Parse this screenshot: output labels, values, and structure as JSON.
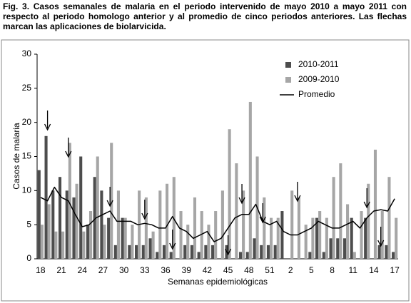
{
  "chart_data": {
    "type": "bar",
    "title": "Fig. 3. Casos semanales de malaria en el periodo intervenido de mayo 2010 a mayo 2011 con respecto al periodo homologo anterior y al promedio de cinco periodos anteriores. Las flechas marcan las aplicaciones de biolarvicida.",
    "x_label": "Semanas epidemiológicas",
    "y_label": "Casos de malaria",
    "categories": [
      "18",
      null,
      null,
      "21",
      null,
      null,
      "24",
      null,
      null,
      "27",
      null,
      null,
      "30",
      null,
      null,
      "33",
      null,
      null,
      "36",
      null,
      null,
      "39",
      null,
      null,
      "42",
      null,
      null,
      "45",
      null,
      null,
      "48",
      null,
      null,
      "51",
      null,
      null,
      "2",
      null,
      null,
      "5",
      null,
      null,
      "8",
      null,
      null,
      "11",
      null,
      null,
      "14",
      null,
      null,
      "17"
    ],
    "series": [
      {
        "name": "2010-2011",
        "type": "bar",
        "color": "#4d4d4d",
        "values": [
          13,
          18,
          10,
          12,
          10,
          9,
          15,
          5,
          12,
          10,
          6,
          2,
          6,
          2,
          2,
          2,
          3,
          1,
          2,
          1,
          0,
          2,
          2,
          1,
          2,
          2,
          0,
          2,
          0,
          1,
          1,
          3,
          2,
          2,
          2,
          7,
          0,
          0,
          0,
          1,
          6,
          1,
          3,
          3,
          3,
          6,
          0,
          6,
          0,
          2,
          2,
          1
        ]
      },
      {
        "name": "2009-2010",
        "type": "bar",
        "color": "#a6a6a6",
        "values": [
          5,
          8,
          4,
          4,
          17,
          11,
          4,
          7,
          15,
          5,
          17,
          10,
          6,
          5,
          10,
          9,
          4,
          10,
          11,
          12,
          7,
          5,
          9,
          7,
          5,
          7,
          10,
          19,
          14,
          10,
          23,
          15,
          9,
          6,
          6,
          0,
          10,
          9,
          5,
          6,
          7,
          6,
          12,
          14,
          8,
          1,
          7,
          11,
          16,
          7,
          12,
          6
        ]
      },
      {
        "name": "Promedio",
        "type": "line",
        "color": "#000000",
        "values": [
          9,
          8.5,
          10.5,
          9,
          8.5,
          6.5,
          4.7,
          5,
          6,
          6.5,
          7,
          5.5,
          5.5,
          5.5,
          5,
          5.2,
          5,
          4.5,
          4.5,
          6.2,
          4.5,
          4,
          3,
          3.5,
          4,
          2.5,
          3,
          4.5,
          6,
          6.5,
          6.5,
          8,
          5.5,
          5,
          5.5,
          4,
          3.5,
          3.5,
          4,
          4.5,
          5.5,
          5,
          4.5,
          4.5,
          5,
          5.5,
          4.5,
          6,
          7,
          7.2,
          7,
          8.8
        ]
      }
    ],
    "ylim": [
      0,
      30
    ],
    "yticks": [
      0,
      5,
      10,
      15,
      20,
      25,
      30
    ],
    "grid": false,
    "legend": "upper right"
  }
}
